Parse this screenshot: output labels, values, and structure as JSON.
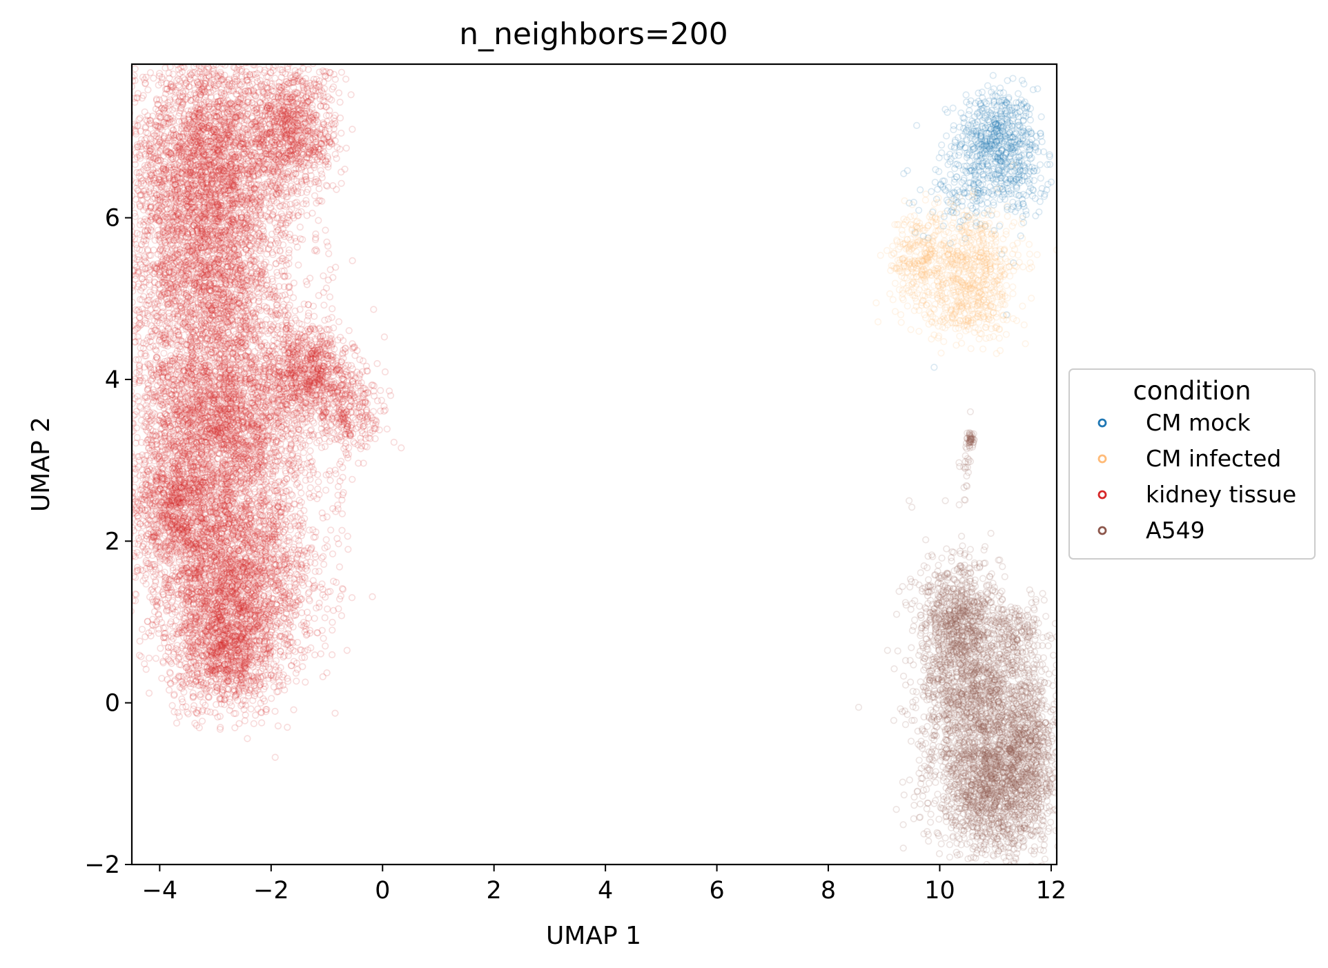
{
  "chart_data": {
    "type": "scatter",
    "title": "n_neighbors=200",
    "xlabel": "UMAP 1",
    "ylabel": "UMAP 2",
    "xlim": [
      -4.5,
      12.1
    ],
    "ylim": [
      -2.0,
      7.9
    ],
    "xticks": [
      -4,
      -2,
      0,
      2,
      4,
      6,
      8,
      10,
      12
    ],
    "xtick_labels": [
      "−4",
      "−2",
      "0",
      "2",
      "4",
      "6",
      "8",
      "10",
      "12"
    ],
    "yticks": [
      -2,
      0,
      2,
      4,
      6
    ],
    "ytick_labels": [
      "−2",
      "0",
      "2",
      "4",
      "6"
    ],
    "grid": false,
    "marker": "hollow circle",
    "legend": {
      "title": "condition",
      "placement": "outside right, vertically centered"
    },
    "series": [
      {
        "name": "CM mock",
        "color": "#1f77b4",
        "clusters": [
          {
            "x": 11.0,
            "y": 7.0,
            "sx": 0.35,
            "sy": 0.3,
            "n": 500
          },
          {
            "x": 11.45,
            "y": 6.6,
            "sx": 0.25,
            "sy": 0.3,
            "n": 160
          },
          {
            "x": 10.5,
            "y": 6.3,
            "sx": 0.45,
            "sy": 0.25,
            "n": 170
          }
        ],
        "points": [
          {
            "x": 11.8,
            "y": 6.2
          },
          {
            "x": 9.9,
            "y": 4.15
          },
          {
            "x": 11.2,
            "y": 4.8
          }
        ]
      },
      {
        "name": "CM infected",
        "color": "#ffbb78",
        "clusters": [
          {
            "x": 10.5,
            "y": 5.45,
            "sx": 0.5,
            "sy": 0.35,
            "n": 650
          },
          {
            "x": 9.6,
            "y": 5.5,
            "sx": 0.25,
            "sy": 0.3,
            "n": 220
          },
          {
            "x": 10.5,
            "y": 4.85,
            "sx": 0.4,
            "sy": 0.2,
            "n": 200
          }
        ],
        "points": [
          {
            "x": 9.85,
            "y": 4.5
          },
          {
            "x": 9.9,
            "y": 4.55
          }
        ]
      },
      {
        "name": "kidney tissue",
        "color": "#d62728",
        "clusters": [
          {
            "x": -3.1,
            "y": 6.6,
            "sx": 0.75,
            "sy": 0.75,
            "n": 3400
          },
          {
            "x": -1.6,
            "y": 7.1,
            "sx": 0.4,
            "sy": 0.4,
            "n": 900
          },
          {
            "x": -3.2,
            "y": 5.3,
            "sx": 0.7,
            "sy": 0.5,
            "n": 1200
          },
          {
            "x": -2.9,
            "y": 3.5,
            "sx": 0.85,
            "sy": 0.8,
            "n": 4000
          },
          {
            "x": -1.3,
            "y": 4.1,
            "sx": 0.35,
            "sy": 0.3,
            "n": 700
          },
          {
            "x": -0.6,
            "y": 3.6,
            "sx": 0.3,
            "sy": 0.3,
            "n": 300
          },
          {
            "x": -2.7,
            "y": 1.5,
            "sx": 0.75,
            "sy": 0.6,
            "n": 2600
          },
          {
            "x": -2.8,
            "y": 0.6,
            "sx": 0.5,
            "sy": 0.35,
            "n": 900
          },
          {
            "x": -3.8,
            "y": 2.4,
            "sx": 0.4,
            "sy": 0.4,
            "n": 700
          }
        ],
        "points": [
          {
            "x": -0.8,
            "y": 2.4
          },
          {
            "x": -0.7,
            "y": 2.6
          },
          {
            "x": -1.2,
            "y": 5.8
          },
          {
            "x": -1.0,
            "y": 5.7
          },
          {
            "x": -1.1,
            "y": 4.6
          }
        ]
      },
      {
        "name": "A549",
        "color": "#8c564b",
        "clusters": [
          {
            "x": 10.3,
            "y": 1.1,
            "sx": 0.35,
            "sy": 0.35,
            "n": 700
          },
          {
            "x": 10.6,
            "y": 0.1,
            "sx": 0.5,
            "sy": 0.5,
            "n": 1300
          },
          {
            "x": 11.0,
            "y": -1.0,
            "sx": 0.55,
            "sy": 0.45,
            "n": 1700
          },
          {
            "x": 11.6,
            "y": -0.3,
            "sx": 0.3,
            "sy": 0.6,
            "n": 500
          },
          {
            "x": 11.4,
            "y": 0.9,
            "sx": 0.25,
            "sy": 0.2,
            "n": 120
          },
          {
            "x": 10.55,
            "y": 3.25,
            "sx": 0.03,
            "sy": 0.05,
            "n": 45
          },
          {
            "x": 10.45,
            "y": 2.95,
            "sx": 0.05,
            "sy": 0.15,
            "n": 20
          }
        ],
        "points": [
          {
            "x": 9.45,
            "y": 2.5
          },
          {
            "x": 9.5,
            "y": 2.42
          },
          {
            "x": 10.1,
            "y": 2.5
          },
          {
            "x": 10.35,
            "y": 2.45
          },
          {
            "x": 10.55,
            "y": 3.6
          }
        ]
      }
    ]
  }
}
